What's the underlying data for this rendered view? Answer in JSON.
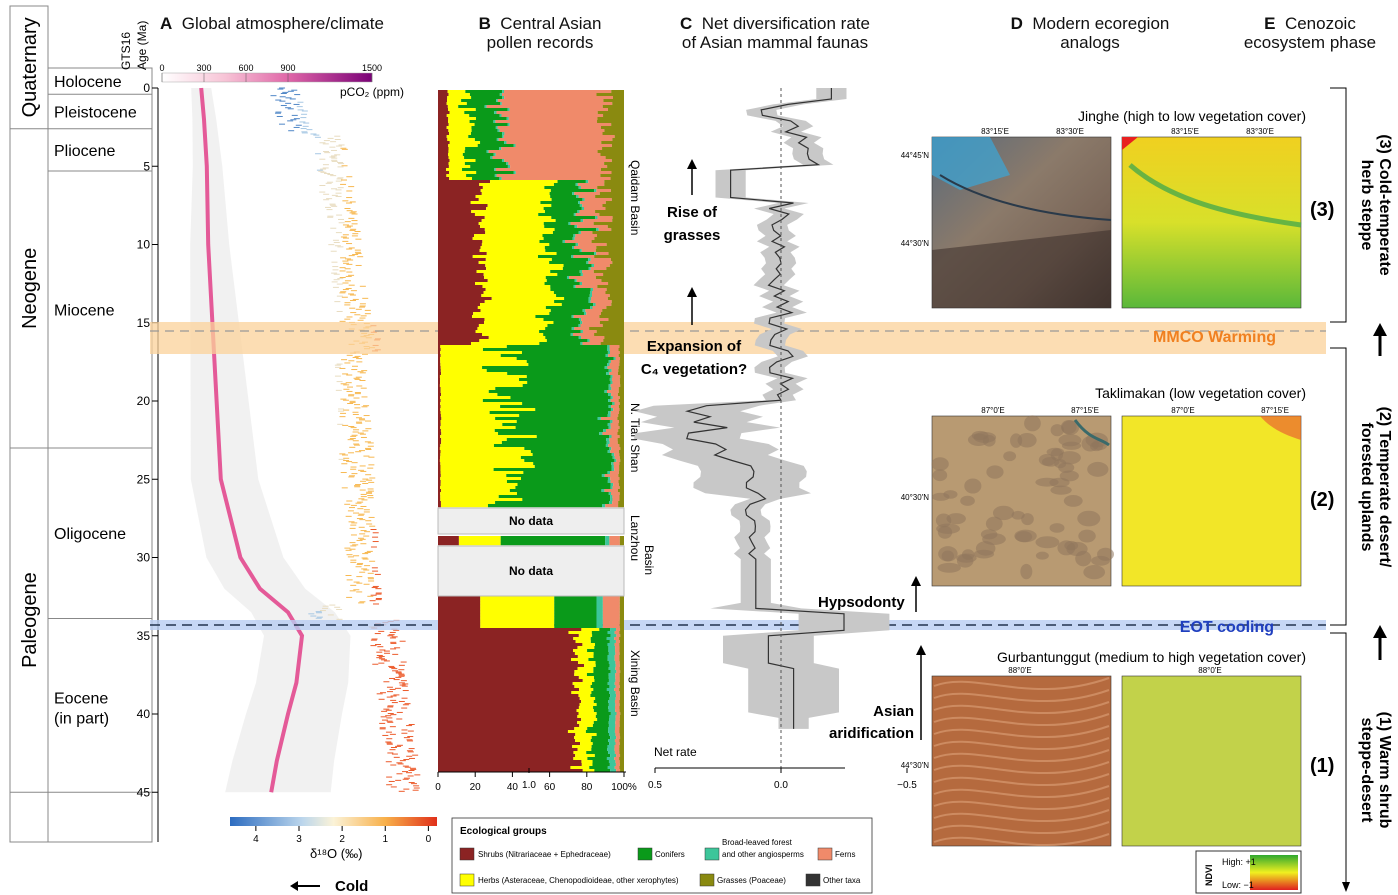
{
  "panels": {
    "A": {
      "letter": "A",
      "title": "Global atmosphere/climate"
    },
    "B": {
      "letter": "B",
      "title_line1": "Central Asian",
      "title_line2": "pollen records"
    },
    "C": {
      "letter": "C",
      "title_line1": "Net diversification rate",
      "title_line2": "of Asian mammal faunas"
    },
    "D": {
      "letter": "D",
      "title_line1": "Modern ecoregion",
      "title_line2": "analogs"
    },
    "E": {
      "letter": "E",
      "title_line1": "Cenozoic",
      "title_line2": "ecosystem phase"
    }
  },
  "timescale": {
    "axis_label_1": "GTS16",
    "axis_label_2": "Age (Ma)",
    "age_ticks": [
      0,
      5,
      10,
      15,
      20,
      25,
      30,
      35,
      40,
      45
    ],
    "periods": [
      {
        "name": "Quaternary",
        "from": 0,
        "to": 2.6
      },
      {
        "name": "Neogene",
        "from": 2.6,
        "to": 23
      },
      {
        "name": "Paleogene",
        "from": 23,
        "to": 45
      }
    ],
    "epochs": [
      {
        "name": "Holocene",
        "from": 0,
        "to": 0.4
      },
      {
        "name": "Pleistocene",
        "from": 0.4,
        "to": 2.6
      },
      {
        "name": "Pliocene",
        "from": 2.6,
        "to": 5.3
      },
      {
        "name": "Miocene",
        "from": 5.3,
        "to": 23
      },
      {
        "name": "Oligocene",
        "from": 23,
        "to": 33.9
      },
      {
        "name": "Eocene",
        "name2": "(in part)",
        "from": 33.9,
        "to": 45
      }
    ]
  },
  "co2_scale": {
    "ticks": [
      0,
      300,
      600,
      900,
      1500
    ],
    "label": "pCO₂ (ppm)",
    "color_low": "#ffffff",
    "color_high": "#7a0177"
  },
  "d18o_scale": {
    "ticks": [
      4,
      3,
      2,
      1,
      0
    ],
    "label": "δ¹⁸O (‰)",
    "arrow_label": "Cold"
  },
  "events": {
    "mmco": {
      "label": "MMCO Warming",
      "age": 15.5,
      "color": "#f08020"
    },
    "eot": {
      "label": "EOT cooling",
      "age": 33.9,
      "color": "#1f3fbf"
    }
  },
  "pollen": {
    "basins": [
      "Qaidam Basin",
      "N. Tian Shan",
      "Lanzhou Basin",
      "Xining Basin"
    ],
    "no_data": "No data",
    "x_ticks": [
      "0",
      "20",
      "40",
      "60",
      "80",
      "100%"
    ]
  },
  "diversification": {
    "axis_title": "Net rate",
    "ticks": [
      "1.0",
      "0.5",
      "0.0",
      "−0.5"
    ],
    "annotations": {
      "grasses_1": "Rise of",
      "grasses_2": "grasses",
      "c4_1": "Expansion of",
      "c4_2": "C₄ vegetation?",
      "hyps": "Hypsodonty",
      "arid_1": "Asian",
      "arid_2": "aridification"
    }
  },
  "ecoregions": [
    {
      "title": "Jinghe (high to low vegetation cover)",
      "phase_num": "(3)",
      "lon_labels": [
        "83°15'E",
        "83°30'E"
      ],
      "lat_labels": [
        "44°45'N",
        "44°30'N"
      ]
    },
    {
      "title": "Taklimakan (low vegetation cover)",
      "phase_num": "(2)",
      "lon_labels": [
        "87°0'E",
        "87°15'E"
      ],
      "lat_labels": [
        "40°30'N"
      ]
    },
    {
      "title": "Gurbantunggut (medium to high vegetation cover)",
      "phase_num": "(1)",
      "lon_labels": [
        "88°0'E"
      ],
      "lat_labels": [
        "44°30'N"
      ]
    }
  ],
  "ndvi": {
    "label": "NDVI",
    "high": "High: +1",
    "low": "Low: −1"
  },
  "phases": [
    {
      "line1": "(3) Cold-temperate",
      "line2": "herb steppe"
    },
    {
      "line1": "(2) Temperate desert/",
      "line2": "forested uplands"
    },
    {
      "line1": "(1) Warm shrub",
      "line2": "steppe-desert"
    }
  ],
  "legend": {
    "title": "Ecological groups",
    "items": [
      {
        "label": "Shrubs (Nitrariaceae + Ephedraceae)",
        "color": "#8b2323"
      },
      {
        "label": "Conifers",
        "color": "#0a9a1a"
      },
      {
        "label_1": "Broad-leaved forest",
        "label_2": "and other angiosperms",
        "color": "#3cc69a"
      },
      {
        "label": "Ferns",
        "color": "#f08a6a"
      },
      {
        "label": "Herbs (Asteraceae, Chenopodioideae, other xerophytes)",
        "color": "#ffff00"
      },
      {
        "label": "Grasses (Poaceae)",
        "color": "#8a8a10"
      },
      {
        "label": "Other taxa",
        "color": "#333333"
      }
    ]
  }
}
